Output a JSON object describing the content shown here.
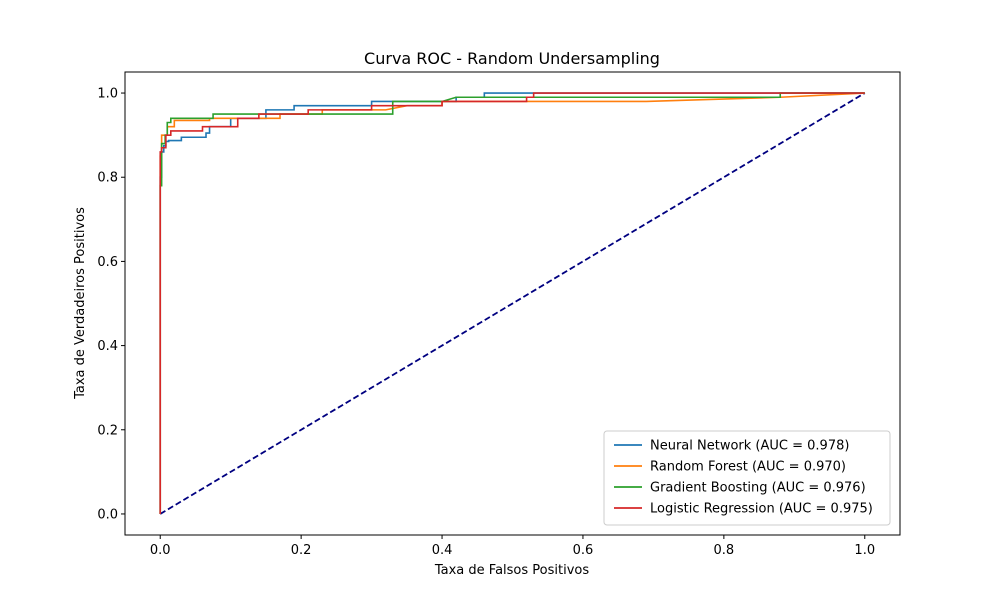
{
  "chart_data": {
    "type": "line",
    "title": "Curva ROC - Random Undersampling",
    "xlabel": "Taxa de Falsos Positivos",
    "ylabel": "Taxa de Verdadeiros Positivos",
    "xlim": [
      -0.05,
      1.05
    ],
    "ylim": [
      -0.05,
      1.05
    ],
    "xticks": [
      "0.0",
      "0.2",
      "0.4",
      "0.6",
      "0.8",
      "1.0"
    ],
    "yticks": [
      "0.0",
      "0.2",
      "0.4",
      "0.6",
      "0.8",
      "1.0"
    ],
    "grid": false,
    "legend_position": "lower-right",
    "diagonal": {
      "color": "#000080",
      "style": "dashed",
      "x": [
        0,
        1
      ],
      "y": [
        0,
        1
      ]
    },
    "series": [
      {
        "name": "Neural Network (AUC = 0.978)",
        "color": "#1f77b4",
        "x": [
          0,
          0,
          0.002,
          0.002,
          0.005,
          0.005,
          0.008,
          0.008,
          0.012,
          0.012,
          0.03,
          0.03,
          0.065,
          0.065,
          0.07,
          0.07,
          0.1,
          0.1,
          0.15,
          0.15,
          0.19,
          0.19,
          0.3,
          0.3,
          0.42,
          0.42,
          0.46,
          0.46,
          1.0
        ],
        "y": [
          0,
          0.8,
          0.8,
          0.86,
          0.86,
          0.875,
          0.875,
          0.885,
          0.885,
          0.887,
          0.887,
          0.895,
          0.895,
          0.905,
          0.905,
          0.92,
          0.92,
          0.94,
          0.94,
          0.96,
          0.96,
          0.97,
          0.97,
          0.98,
          0.98,
          0.99,
          0.99,
          1.0,
          1.0
        ]
      },
      {
        "name": "Random Forest (AUC = 0.970)",
        "color": "#ff7f0e",
        "x": [
          0,
          0,
          0.002,
          0.002,
          0.01,
          0.01,
          0.02,
          0.02,
          0.07,
          0.07,
          0.17,
          0.17,
          0.23,
          0.23,
          0.32,
          0.35,
          0.4,
          0.4,
          0.69,
          0.88,
          1.0
        ],
        "y": [
          0,
          0.85,
          0.85,
          0.9,
          0.9,
          0.92,
          0.92,
          0.935,
          0.935,
          0.94,
          0.94,
          0.95,
          0.95,
          0.96,
          0.96,
          0.97,
          0.97,
          0.98,
          0.98,
          0.99,
          1.0
        ]
      },
      {
        "name": "Gradient Boosting (AUC = 0.976)",
        "color": "#2ca02c",
        "x": [
          0,
          0,
          0.002,
          0.002,
          0.007,
          0.007,
          0.01,
          0.01,
          0.015,
          0.015,
          0.075,
          0.075,
          0.33,
          0.33,
          0.4,
          0.42,
          0.88,
          0.88,
          1.0
        ],
        "y": [
          0,
          0.78,
          0.78,
          0.88,
          0.88,
          0.9,
          0.9,
          0.93,
          0.93,
          0.94,
          0.94,
          0.95,
          0.95,
          0.98,
          0.98,
          0.99,
          0.99,
          1.0,
          1.0
        ]
      },
      {
        "name": "Logistic Regression (AUC = 0.975)",
        "color": "#d62728",
        "x": [
          0,
          0,
          0.002,
          0.002,
          0.008,
          0.008,
          0.015,
          0.015,
          0.06,
          0.06,
          0.11,
          0.11,
          0.14,
          0.14,
          0.21,
          0.21,
          0.3,
          0.3,
          0.4,
          0.4,
          0.52,
          0.52,
          0.53,
          0.53,
          1.0
        ],
        "y": [
          0,
          0.86,
          0.86,
          0.87,
          0.87,
          0.9,
          0.9,
          0.91,
          0.91,
          0.92,
          0.92,
          0.94,
          0.94,
          0.95,
          0.95,
          0.96,
          0.96,
          0.97,
          0.97,
          0.98,
          0.98,
          0.99,
          0.99,
          1.0,
          1.0
        ]
      }
    ]
  }
}
